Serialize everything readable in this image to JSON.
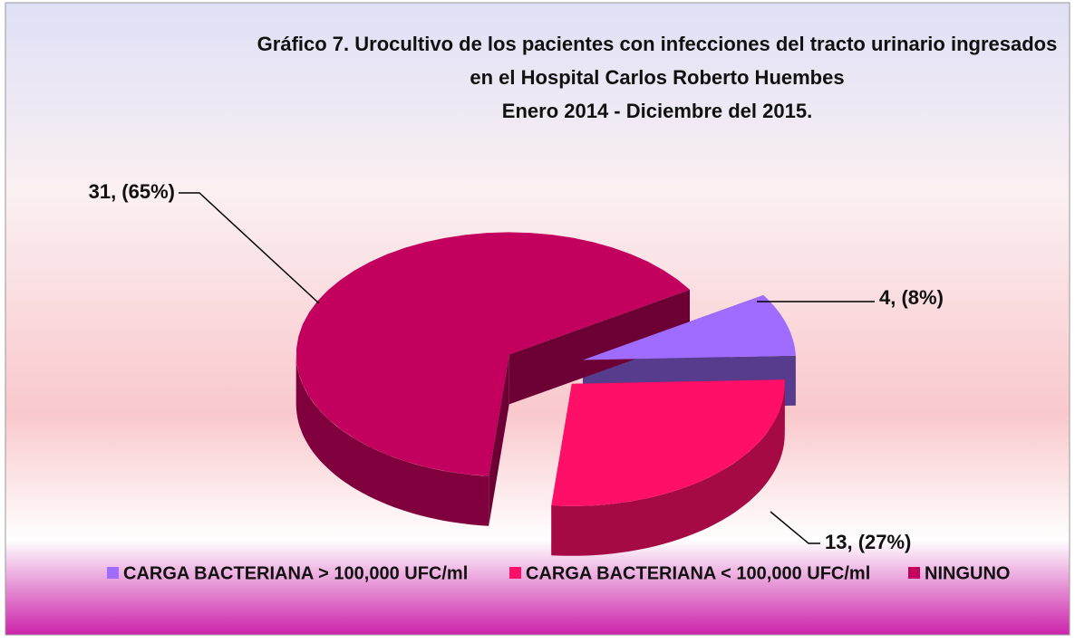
{
  "chart_data": {
    "type": "pie3d",
    "title": [
      "Gráfico 7. Urocultivo de los pacientes con infecciones del tracto urinario ingresados",
      "en el Hospital Carlos Roberto Huembes",
      "Enero 2014 - Diciembre del 2015."
    ],
    "categories": [
      "CARGA BACTERIANA > 100,000 UFC/ml",
      "CARGA BACTERIANA < 100,000 UFC/ml",
      "NINGUNO"
    ],
    "values": [
      4,
      13,
      31
    ],
    "value_labels": [
      "4, (8%)",
      "13, (27%)",
      "31, (65%)"
    ],
    "colors": [
      "#9f6cff",
      "#ff0f68",
      "#c4005e"
    ],
    "legend": "bottom"
  }
}
